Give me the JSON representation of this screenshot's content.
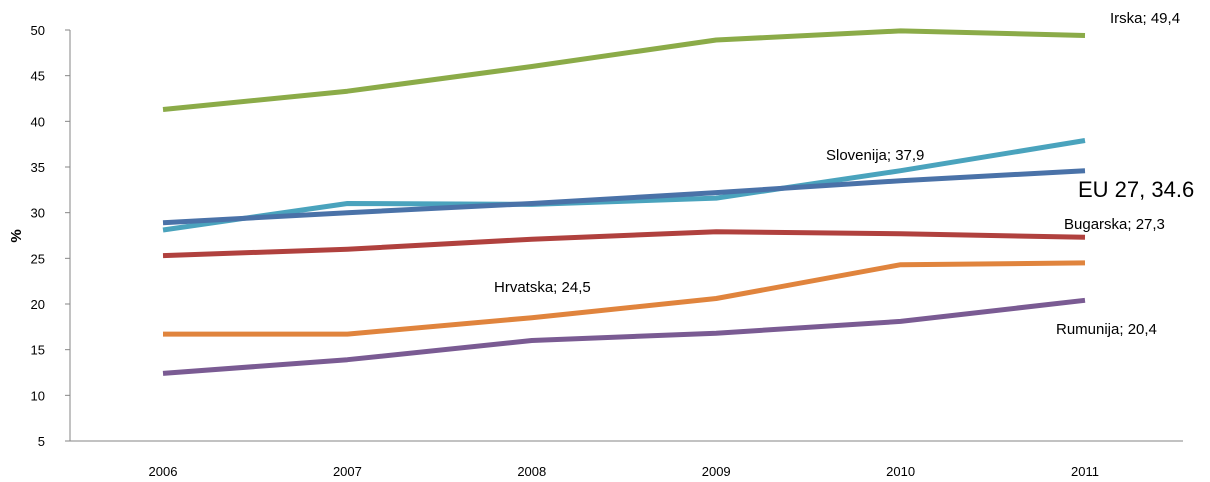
{
  "chart_data": {
    "type": "line",
    "title": "",
    "xlabel": "",
    "ylabel": "%",
    "ylim": [
      5,
      50
    ],
    "yticks": [
      5,
      10,
      15,
      20,
      25,
      30,
      35,
      40,
      45,
      50
    ],
    "categories": [
      "2006",
      "2007",
      "2008",
      "2009",
      "2010",
      "2011"
    ],
    "grid": false,
    "legend": "none",
    "series": [
      {
        "name": "Irska",
        "color": "#8bab48",
        "values": [
          41.3,
          43.3,
          46.0,
          48.9,
          49.9,
          49.4
        ]
      },
      {
        "name": "Slovenija",
        "color": "#4aa3bd",
        "values": [
          28.1,
          31.0,
          30.9,
          31.6,
          34.6,
          37.9
        ]
      },
      {
        "name": "EU 27",
        "color": "#4a72a8",
        "values": [
          28.9,
          30.0,
          31.0,
          32.2,
          33.5,
          34.6
        ]
      },
      {
        "name": "Bugarska",
        "color": "#b0413e",
        "values": [
          25.3,
          26.0,
          27.1,
          27.9,
          27.7,
          27.3
        ]
      },
      {
        "name": "Hrvatska",
        "color": "#e0843d",
        "values": [
          16.7,
          16.7,
          18.5,
          20.6,
          24.3,
          24.5
        ]
      },
      {
        "name": "Rumunija",
        "color": "#7a5b93",
        "values": [
          12.4,
          13.9,
          16.0,
          16.8,
          18.1,
          20.4
        ]
      }
    ],
    "annotations": [
      {
        "text": "Irska; 49,4",
        "series": "Irska",
        "category": "2011",
        "value": 49.4,
        "big": false
      },
      {
        "text": "Slovenija; 37,9",
        "series": "Slovenija",
        "category": "2011",
        "value": 37.9,
        "big": false
      },
      {
        "text": "EU 27, 34.6",
        "series": "EU 27",
        "category": "2011",
        "value": 34.6,
        "big": true
      },
      {
        "text": "Bugarska; 27,3",
        "series": "Bugarska",
        "category": "2011",
        "value": 27.3,
        "big": false
      },
      {
        "text": "Hrvatska; 24,5",
        "series": "Hrvatska",
        "category": "2011",
        "value": 24.5,
        "big": false
      },
      {
        "text": "Rumunija; 20,4",
        "series": "Rumunija",
        "category": "2011",
        "value": 20.4,
        "big": false
      }
    ]
  }
}
